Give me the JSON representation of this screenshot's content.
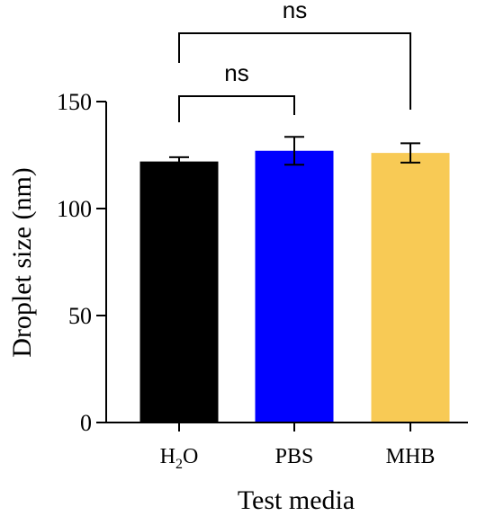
{
  "chart_data": {
    "type": "bar",
    "categories": [
      "H2O",
      "PBS",
      "MHB"
    ],
    "category_labels": [
      {
        "main": "H",
        "sub": "2",
        "tail": "O"
      },
      {
        "main": "PBS",
        "sub": "",
        "tail": ""
      },
      {
        "main": "MHB",
        "sub": "",
        "tail": ""
      }
    ],
    "values": [
      122,
      127,
      126
    ],
    "error": [
      2,
      6.5,
      4.5
    ],
    "colors": [
      "#000000",
      "#0000ff",
      "#f8ca55"
    ],
    "xlabel": "Test media",
    "ylabel": "Droplet size (nm)",
    "ylim": [
      0,
      150
    ],
    "yticks": [
      0,
      50,
      100,
      150
    ],
    "grid": false,
    "significance": [
      {
        "from": 0,
        "to": 1,
        "label": "ns"
      },
      {
        "from": 0,
        "to": 2,
        "label": "ns"
      }
    ]
  }
}
